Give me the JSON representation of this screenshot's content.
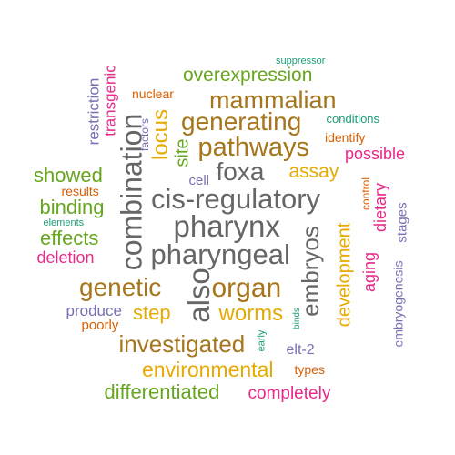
{
  "colors": {
    "teal": "#1b9e77",
    "orange": "#d95f02",
    "purple": "#7570b3",
    "magenta": "#e7298a",
    "green": "#66a61e",
    "gold": "#e6ab02",
    "brown": "#a6761d",
    "gray": "#666666"
  },
  "words": [
    {
      "text": "suppressor",
      "color": "teal",
      "rotated": false
    },
    {
      "text": "overexpression",
      "color": "green",
      "rotated": false
    },
    {
      "text": "transgenic",
      "color": "magenta",
      "rotated": true
    },
    {
      "text": "restriction",
      "color": "purple",
      "rotated": true
    },
    {
      "text": "nuclear",
      "color": "orange",
      "rotated": false
    },
    {
      "text": "mammalian",
      "color": "brown",
      "rotated": false
    },
    {
      "text": "factors",
      "color": "purple",
      "rotated": true
    },
    {
      "text": "combination",
      "color": "gray",
      "rotated": true
    },
    {
      "text": "locus",
      "color": "gold",
      "rotated": true
    },
    {
      "text": "generating",
      "color": "brown",
      "rotated": false
    },
    {
      "text": "conditions",
      "color": "teal",
      "rotated": false
    },
    {
      "text": "identify",
      "color": "orange",
      "rotated": false
    },
    {
      "text": "site",
      "color": "green",
      "rotated": true
    },
    {
      "text": "pathways",
      "color": "brown",
      "rotated": false
    },
    {
      "text": "possible",
      "color": "magenta",
      "rotated": false
    },
    {
      "text": "showed",
      "color": "green",
      "rotated": false
    },
    {
      "text": "foxa",
      "color": "gray",
      "rotated": false
    },
    {
      "text": "assay",
      "color": "gold",
      "rotated": false
    },
    {
      "text": "cell",
      "color": "purple",
      "rotated": false
    },
    {
      "text": "results",
      "color": "orange",
      "rotated": false
    },
    {
      "text": "control",
      "color": "orange",
      "rotated": true
    },
    {
      "text": "dietary",
      "color": "magenta",
      "rotated": true
    },
    {
      "text": "cis-regulatory",
      "color": "gray",
      "rotated": false
    },
    {
      "text": "binding",
      "color": "green",
      "rotated": false
    },
    {
      "text": "stages",
      "color": "purple",
      "rotated": true
    },
    {
      "text": "elements",
      "color": "teal",
      "rotated": false
    },
    {
      "text": "pharynx",
      "color": "gray",
      "rotated": false
    },
    {
      "text": "effects",
      "color": "green",
      "rotated": false
    },
    {
      "text": "embryos",
      "color": "gray",
      "rotated": true
    },
    {
      "text": "development",
      "color": "gold",
      "rotated": true
    },
    {
      "text": "pharyngeal",
      "color": "gray",
      "rotated": false
    },
    {
      "text": "deletion",
      "color": "magenta",
      "rotated": false
    },
    {
      "text": "aging",
      "color": "magenta",
      "rotated": true
    },
    {
      "text": "genetic",
      "color": "brown",
      "rotated": false
    },
    {
      "text": "organ",
      "color": "brown",
      "rotated": false
    },
    {
      "text": "also",
      "color": "gray",
      "rotated": true
    },
    {
      "text": "embryogenesis",
      "color": "purple",
      "rotated": true
    },
    {
      "text": "produce",
      "color": "purple",
      "rotated": false
    },
    {
      "text": "step",
      "color": "gold",
      "rotated": false
    },
    {
      "text": "worms",
      "color": "gold",
      "rotated": false
    },
    {
      "text": "binds",
      "color": "teal",
      "rotated": true
    },
    {
      "text": "poorly",
      "color": "orange",
      "rotated": false
    },
    {
      "text": "investigated",
      "color": "brown",
      "rotated": false
    },
    {
      "text": "early",
      "color": "teal",
      "rotated": true
    },
    {
      "text": "elt-2",
      "color": "purple",
      "rotated": false
    },
    {
      "text": "environmental",
      "color": "gold",
      "rotated": false
    },
    {
      "text": "types",
      "color": "orange",
      "rotated": false
    },
    {
      "text": "differentiated",
      "color": "green",
      "rotated": false
    },
    {
      "text": "completely",
      "color": "magenta",
      "rotated": false
    }
  ]
}
